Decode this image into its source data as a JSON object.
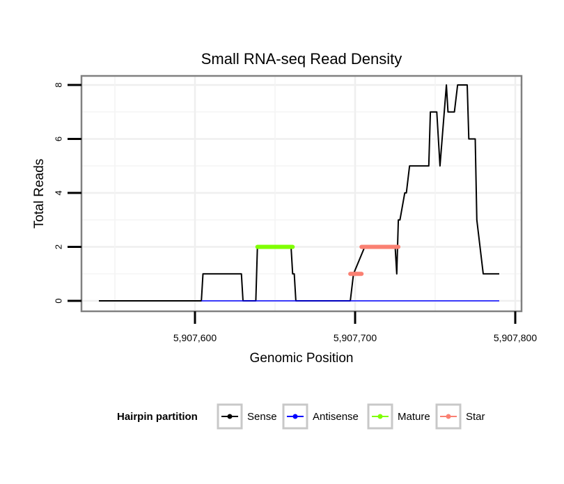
{
  "chart_data": {
    "type": "line",
    "title": "Small RNA-seq Read Density",
    "xlabel": "Genomic Position",
    "ylabel": "Total Reads",
    "xlim": [
      5907535,
      5907805
    ],
    "ylim": [
      -0.3,
      8.4
    ],
    "x_ticks": [
      {
        "value": 5907600,
        "label": "5,907,600"
      },
      {
        "value": 5907700,
        "label": "5,907,700"
      },
      {
        "value": 5907800,
        "label": "5,907,800"
      }
    ],
    "y_ticks": [
      {
        "value": 0,
        "label": "0"
      },
      {
        "value": 2,
        "label": "2"
      },
      {
        "value": 4,
        "label": "4"
      },
      {
        "value": 6,
        "label": "6"
      },
      {
        "value": 8,
        "label": "8"
      }
    ],
    "grid": true,
    "legend": {
      "title": "Hairpin partition",
      "position": "bottom",
      "entries": [
        {
          "name": "Sense",
          "color": "#000000"
        },
        {
          "name": "Antisense",
          "color": "#0000ff"
        },
        {
          "name": "Mature",
          "color": "#7fff00"
        },
        {
          "name": "Star",
          "color": "#fa8072"
        }
      ]
    },
    "series": [
      {
        "name": "Sense",
        "color": "#000000",
        "width": 2,
        "x": [
          5907540,
          5907604,
          5907605,
          5907629,
          5907630,
          5907638,
          5907639,
          5907660,
          5907661,
          5907662,
          5907663,
          5907697,
          5907699,
          5907706,
          5907725,
          5907726,
          5907727,
          5907728,
          5907731,
          5907732,
          5907733,
          5907734,
          5907735,
          5907746,
          5907747,
          5907751,
          5907753,
          5907757,
          5907758,
          5907762,
          5907764,
          5907770,
          5907771,
          5907775,
          5907776,
          5907780,
          5907782,
          5907790
        ],
        "y": [
          0,
          0,
          1,
          1,
          0,
          0,
          2,
          2,
          1,
          1,
          0,
          0,
          1,
          2,
          2,
          1,
          3,
          3,
          4,
          4,
          4.5,
          5,
          5,
          5,
          7,
          7,
          5,
          8,
          7,
          7,
          8,
          8,
          6,
          6,
          3,
          1,
          1,
          1
        ]
      },
      {
        "name": "Antisense",
        "color": "#0000ff",
        "width": 1.5,
        "x": [
          5907604,
          5907790
        ],
        "y": [
          0,
          0
        ]
      },
      {
        "name": "Mature",
        "color": "#7fff00",
        "width": 6,
        "x": [
          5907639,
          5907661
        ],
        "y": [
          2,
          2
        ]
      },
      {
        "name": "Star",
        "color": "#fa8072",
        "width": 6,
        "x": [
          5907697,
          5907704
        ],
        "y": [
          1,
          1
        ]
      },
      {
        "name": "Star",
        "color": "#fa8072",
        "width": 6,
        "x": [
          5907704,
          5907727
        ],
        "y": [
          2,
          2
        ]
      }
    ]
  }
}
